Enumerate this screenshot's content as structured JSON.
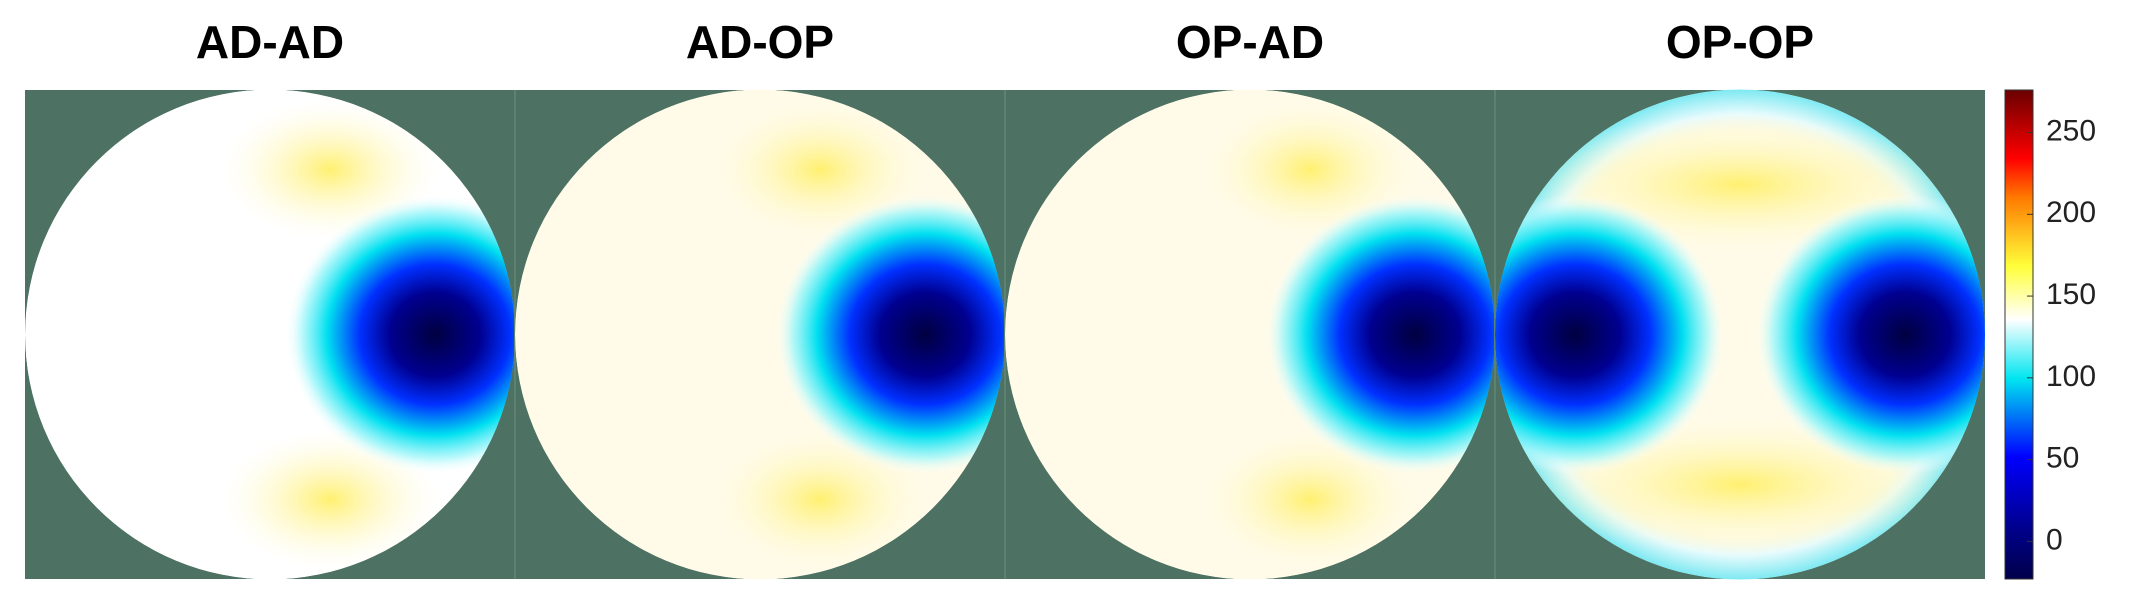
{
  "chart_data": {
    "type": "heatmap",
    "panels": [
      {
        "title": "AD-AD"
      },
      {
        "title": "AD-OP"
      },
      {
        "title": "OP-AD"
      },
      {
        "title": "OP-OP"
      }
    ],
    "colorbar": {
      "clim": [
        -23,
        276
      ],
      "ticks": [
        0,
        50,
        100,
        150,
        200,
        250
      ]
    }
  }
}
